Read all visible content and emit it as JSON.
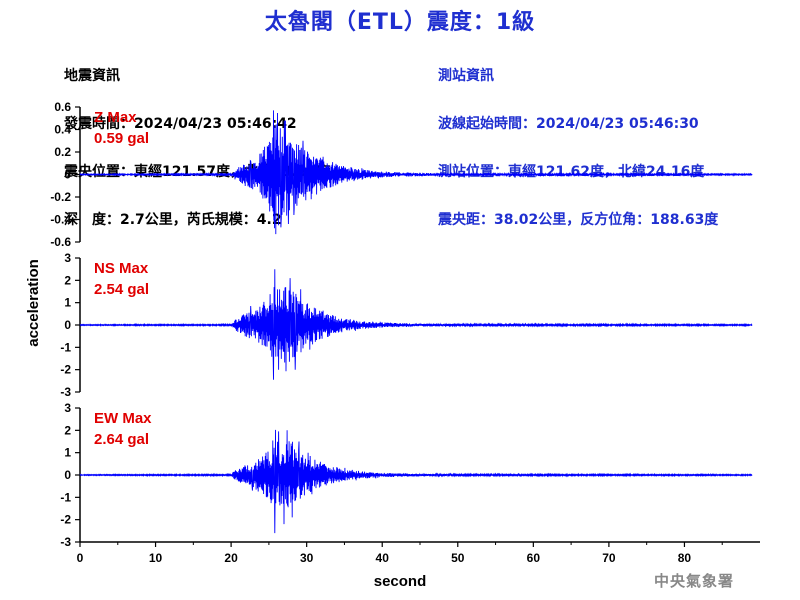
{
  "title": "太魯閣（ETL）震度：1級",
  "event_info": {
    "heading": "地震資訊",
    "origin_time": "發震時間：2024/04/23 05:46:42",
    "epicenter": "震央位置：東經121.57度，北緯23.82度",
    "depth_magnitude": "深　度：2.7公里，芮氏規模：4.2"
  },
  "station_info": {
    "heading": "測站資訊",
    "waveform_start": "波線起始時間：2024/04/23 05:46:30",
    "station_location": "測站位置：東經121.62度，北緯24.16度",
    "distance_azimuth": "震央距：38.02公里，反方位角：188.63度"
  },
  "agency": "中央氣象署",
  "colors": {
    "trace": "#0000ff",
    "title": "#1f2fd0",
    "max_label": "#e00000",
    "agency": "#888888"
  },
  "chart_data": {
    "type": "line",
    "xlabel": "second",
    "ylabel": "acceleration",
    "xlim": [
      0,
      90
    ],
    "xticks": [
      0,
      10,
      20,
      30,
      40,
      50,
      60,
      70,
      80
    ],
    "grid": false,
    "panels": [
      {
        "component": "Z",
        "max_label": "Z Max",
        "max_value": "0.59 gal",
        "ylim": [
          -0.6,
          0.6
        ],
        "yticks": [
          0.6,
          0.4,
          0.2,
          0,
          -0.2,
          -0.4,
          -0.6
        ],
        "ytick_labels": [
          "0.6",
          "0.4",
          "0.2",
          "0",
          "-0.2",
          "-0.4",
          "-0.6"
        ],
        "envelope": [
          [
            0,
            0.004
          ],
          [
            20,
            0.006
          ],
          [
            20.6,
            0.05
          ],
          [
            21.5,
            0.09
          ],
          [
            23,
            0.14
          ],
          [
            25,
            0.3
          ],
          [
            25.8,
            0.52
          ],
          [
            26.5,
            0.42
          ],
          [
            27.5,
            0.38
          ],
          [
            29,
            0.26
          ],
          [
            31,
            0.17
          ],
          [
            33,
            0.12
          ],
          [
            35,
            0.08
          ],
          [
            37,
            0.05
          ],
          [
            39,
            0.03
          ],
          [
            42,
            0.02
          ],
          [
            47,
            0.012
          ],
          [
            55,
            0.008
          ],
          [
            90,
            0.005
          ]
        ],
        "peaks": [
          [
            25.6,
            0.57
          ],
          [
            25.9,
            -0.53
          ],
          [
            27.2,
            0.48
          ],
          [
            27.6,
            -0.44
          ],
          [
            29.5,
            0.3
          ],
          [
            28.3,
            -0.36
          ],
          [
            22.6,
            0.12
          ],
          [
            26.6,
            -0.47
          ],
          [
            30.6,
            -0.22
          ]
        ]
      },
      {
        "component": "NS",
        "max_label": "NS Max",
        "max_value": "2.54 gal",
        "ylim": [
          -3,
          3
        ],
        "yticks": [
          3,
          2,
          1,
          0,
          -1,
          -2,
          -3
        ],
        "ytick_labels": [
          "3",
          "2",
          "1",
          "0",
          "-1",
          "-2",
          "-3"
        ],
        "envelope": [
          [
            0,
            0.02
          ],
          [
            20,
            0.03
          ],
          [
            20.6,
            0.25
          ],
          [
            21.5,
            0.45
          ],
          [
            23,
            0.7
          ],
          [
            25,
            1.3
          ],
          [
            25.8,
            2.0
          ],
          [
            26.5,
            1.7
          ],
          [
            27.5,
            1.8
          ],
          [
            29,
            1.3
          ],
          [
            31,
            0.85
          ],
          [
            33,
            0.5
          ],
          [
            35,
            0.3
          ],
          [
            37,
            0.2
          ],
          [
            40,
            0.12
          ],
          [
            44,
            0.07
          ],
          [
            50,
            0.04
          ],
          [
            90,
            0.025
          ]
        ],
        "peaks": [
          [
            25.8,
            2.5
          ],
          [
            25.6,
            -2.45
          ],
          [
            27.8,
            2.1
          ],
          [
            28.5,
            -2.0
          ],
          [
            29.2,
            1.6
          ],
          [
            22.6,
            0.85
          ],
          [
            26.3,
            -2.0
          ],
          [
            30.4,
            -1.1
          ]
        ]
      },
      {
        "component": "EW",
        "max_label": "EW Max",
        "max_value": "2.64 gal",
        "ylim": [
          -3,
          3
        ],
        "yticks": [
          3,
          2,
          1,
          0,
          -1,
          -2,
          -3
        ],
        "ytick_labels": [
          "3",
          "2",
          "1",
          "0",
          "-1",
          "-2",
          "-3"
        ],
        "envelope": [
          [
            0,
            0.02
          ],
          [
            20,
            0.03
          ],
          [
            20.6,
            0.25
          ],
          [
            21.5,
            0.4
          ],
          [
            23,
            0.6
          ],
          [
            25,
            1.1
          ],
          [
            25.8,
            1.8
          ],
          [
            26.5,
            1.5
          ],
          [
            27.5,
            1.6
          ],
          [
            29,
            1.1
          ],
          [
            31,
            0.7
          ],
          [
            33,
            0.45
          ],
          [
            35,
            0.28
          ],
          [
            37,
            0.18
          ],
          [
            40,
            0.1
          ],
          [
            44,
            0.06
          ],
          [
            50,
            0.035
          ],
          [
            90,
            0.025
          ]
        ],
        "peaks": [
          [
            25.8,
            -2.6
          ],
          [
            26.3,
            1.95
          ],
          [
            27.4,
            2.0
          ],
          [
            28.1,
            -1.9
          ],
          [
            29.0,
            1.5
          ],
          [
            22.8,
            -0.7
          ],
          [
            27.0,
            -2.2
          ],
          [
            30.2,
            1.0
          ]
        ]
      }
    ]
  }
}
